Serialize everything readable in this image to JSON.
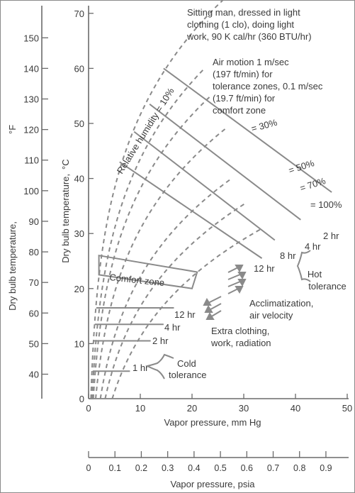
{
  "chart_data": {
    "type": "line",
    "x_axis_mm": {
      "label": "Vapor pressure, mm Hg",
      "ticks": [
        0,
        10,
        20,
        30,
        40,
        50
      ],
      "range": [
        0,
        50
      ]
    },
    "x_axis_psia": {
      "label": "Vapor pressure, psia",
      "ticks": [
        "0",
        "0.1",
        "0.2",
        "0.3",
        "0.4",
        "0.5",
        "0.6",
        "0.7",
        "0.8",
        "0.9"
      ],
      "range": [
        0,
        0.97
      ]
    },
    "y_axis_c": {
      "label": "Dry bulb temperature,",
      "unit": "°C",
      "ticks": [
        0,
        10,
        20,
        30,
        40,
        50,
        60,
        70
      ],
      "range": [
        0,
        77
      ]
    },
    "y_axis_f": {
      "label": "Dry bulb temperature,",
      "unit": "°F",
      "ticks": [
        40,
        50,
        60,
        70,
        80,
        90,
        100,
        110,
        120,
        130,
        140,
        150
      ]
    },
    "annotations": {
      "conditions": [
        "Sitting man, dressed in light",
        "clothing (1 clo), doing light",
        "work, 90 K cal/hr (360 BTU/hr)"
      ],
      "air_motion": [
        "Air motion 1 m/sec",
        "(197 ft/min) for",
        "tolerance zones, 0.1 m/sec",
        "(19.7 ft/min) for",
        "comfort zone"
      ],
      "comfort_zone": "Comfort zone",
      "hot_tolerance": [
        "Hot",
        "tolerance"
      ],
      "cold_tolerance": [
        "Cold",
        "tolerance"
      ],
      "acclimatization": [
        "Acclimatization,",
        "air velocity"
      ],
      "extra_clothing": [
        "Extra clothing,",
        "work, radiation"
      ]
    },
    "rh_curves": [
      {
        "label": "Relative humidity = 10%",
        "rh": 0.1,
        "t_range": [
          0,
          77
        ]
      },
      {
        "label": "",
        "rh": 0.15,
        "t_range": [
          0,
          60
        ]
      },
      {
        "label": "",
        "rh": 0.2,
        "t_range": [
          0,
          55
        ]
      },
      {
        "label": "= 30%",
        "rh": 0.3,
        "t_range": [
          0,
          49
        ]
      },
      {
        "label": "= 50%",
        "rh": 0.5,
        "t_range": [
          0,
          40
        ]
      },
      {
        "label": "= 70%",
        "rh": 0.7,
        "t_range": [
          0,
          35.5
        ]
      },
      {
        "label": "= 100%",
        "rh": 1.0,
        "t_range": [
          0,
          31
        ]
      }
    ],
    "hot_tolerance_lines": [
      {
        "label": "2 hr",
        "points": [
          [
            14.5,
            60
          ],
          [
            47,
            37.5
          ]
        ]
      },
      {
        "label": "4 hr",
        "points": [
          [
            11.8,
            53.5
          ],
          [
            41,
            32.5
          ]
        ]
      },
      {
        "label": "8 hr",
        "points": [
          [
            8.8,
            48.5
          ],
          [
            36,
            28.8
          ]
        ]
      },
      {
        "label": "12 hr",
        "points": [
          [
            6,
            43
          ],
          [
            33.5,
            25.5
          ]
        ]
      }
    ],
    "comfort_zone_polygon": [
      [
        2,
        26
      ],
      [
        21,
        23
      ],
      [
        20,
        20
      ],
      [
        2,
        22.5
      ]
    ],
    "cold_tolerance_lines": [
      {
        "label": "12 hr",
        "points": [
          [
            1.5,
            16.5
          ],
          [
            16.5,
            16.5
          ]
        ]
      },
      {
        "label": "4 hr",
        "points": [
          [
            1.2,
            13.5
          ],
          [
            14.5,
            13.5
          ]
        ]
      },
      {
        "label": "2 hr",
        "points": [
          [
            1,
            10.5
          ],
          [
            12,
            10.5
          ]
        ]
      },
      {
        "label": "1 hr",
        "points": [
          [
            0.8,
            5
          ],
          [
            8,
            5
          ]
        ]
      }
    ]
  }
}
